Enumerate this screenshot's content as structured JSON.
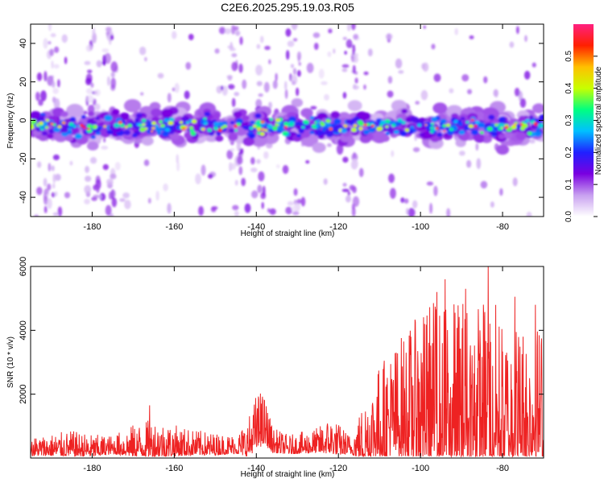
{
  "title": "C2E6.2025.295.19.03.R05",
  "chart_data": [
    {
      "type": "heatmap",
      "name": "spectrogram",
      "xlabel": "Height of straight line (km)",
      "ylabel": "Frequency (Hz)",
      "xlim": [
        -195,
        -70
      ],
      "ylim": [
        -50,
        50
      ],
      "xticks": [
        -180,
        -160,
        -140,
        -120,
        -100,
        -80
      ],
      "yticks": [
        -40,
        -20,
        0,
        20,
        40
      ],
      "band_center_hz": -3,
      "band_halfwidth_hz": 6,
      "faint_vertical_streaks_km": [
        -190,
        -180,
        -176,
        -145,
        -138,
        -131,
        -117
      ],
      "colorbar": {
        "label": "Normalized spectral amplitude",
        "range": [
          0,
          0.6
        ],
        "ticks": [
          0,
          0.1,
          0.2,
          0.3,
          0.4,
          0.5
        ],
        "tick_labels": [
          "0.0",
          "0.1",
          "0.2",
          "0.3",
          "0.4",
          "0.5"
        ],
        "colors": [
          "#ffffff",
          "#c8a0f0",
          "#7a00e0",
          "#2020ff",
          "#00c0ff",
          "#00ff80",
          "#c8ff00",
          "#ffc000",
          "#ff2000",
          "#ff2080"
        ]
      }
    },
    {
      "type": "line",
      "name": "snr",
      "xlabel": "Height of straight line (km)",
      "ylabel": "SNR (10 * v/v)",
      "xlim": [
        -195,
        -70
      ],
      "ylim": [
        0,
        6000
      ],
      "xticks": [
        -180,
        -160,
        -140,
        -120,
        -100,
        -80
      ],
      "yticks": [
        2000,
        4000,
        6000
      ],
      "color": "#ee2222",
      "envelope": {
        "x": [
          -195,
          -185,
          -180,
          -175,
          -170,
          -165,
          -160,
          -155,
          -150,
          -145,
          -142,
          -140,
          -138,
          -136,
          -132,
          -125,
          -122,
          -120,
          -117,
          -114,
          -110,
          -105,
          -100,
          -97,
          -93,
          -90,
          -86,
          -83,
          -80,
          -75,
          -70
        ],
        "baseline": [
          250,
          300,
          250,
          300,
          350,
          400,
          350,
          330,
          300,
          320,
          400,
          800,
          900,
          400,
          300,
          400,
          500,
          400,
          300,
          500,
          900,
          1200,
          1300,
          1500,
          1300,
          1400,
          1300,
          1400,
          1200,
          1300,
          1300
        ],
        "amplitude": [
          300,
          400,
          350,
          300,
          500,
          600,
          500,
          400,
          350,
          300,
          600,
          900,
          800,
          400,
          300,
          400,
          600,
          500,
          300,
          900,
          1500,
          1900,
          2300,
          2600,
          2500,
          2700,
          2600,
          2800,
          2300,
          2200,
          2100
        ]
      },
      "peaks": [
        {
          "x": -83.5,
          "y": 6000
        },
        {
          "x": -94,
          "y": 5600
        },
        {
          "x": -96,
          "y": 5200
        },
        {
          "x": -89,
          "y": 5300
        },
        {
          "x": -77,
          "y": 5050
        },
        {
          "x": -72,
          "y": 4800
        },
        {
          "x": -99,
          "y": 4200
        },
        {
          "x": -139,
          "y": 2020
        },
        {
          "x": -166,
          "y": 1650
        }
      ]
    }
  ]
}
